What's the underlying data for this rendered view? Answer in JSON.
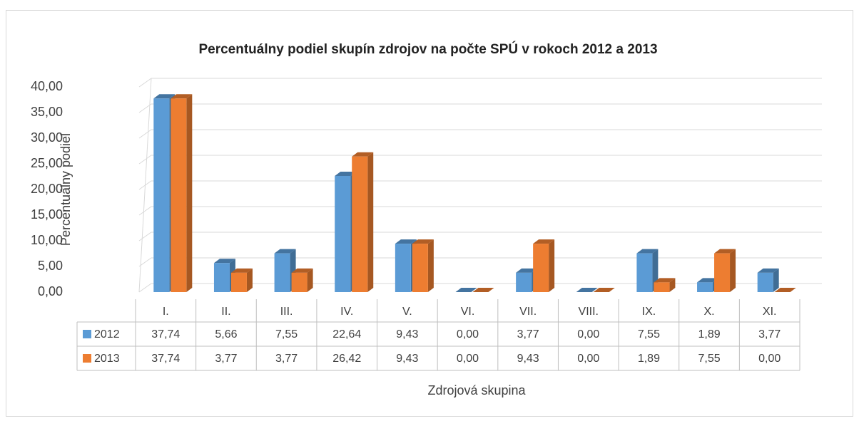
{
  "chart_data": {
    "type": "bar",
    "title": "Percentuálny podiel skupín zdrojov na počte SPÚ v rokoch 2012 a 2013",
    "y_label": "Percentuálny podiel",
    "x_label": "Zdrojová skupina",
    "categories": [
      "I.",
      "II.",
      "III.",
      "IV.",
      "V.",
      "VI.",
      "VII.",
      "VIII.",
      "IX.",
      "X.",
      "XI."
    ],
    "series": [
      {
        "name": "2012",
        "color": "#5b9bd5",
        "values": [
          37.74,
          5.66,
          7.55,
          22.64,
          9.43,
          0,
          3.77,
          0,
          7.55,
          1.89,
          3.77
        ],
        "value_labels": [
          "37,74",
          "5,66",
          "7,55",
          "22,64",
          "9,43",
          "0,00",
          "3,77",
          "0,00",
          "7,55",
          "1,89",
          "3,77"
        ]
      },
      {
        "name": "2013",
        "color": "#ed7d31",
        "values": [
          37.74,
          3.77,
          3.77,
          26.42,
          9.43,
          0,
          9.43,
          0,
          1.89,
          7.55,
          0
        ],
        "value_labels": [
          "37,74",
          "3,77",
          "3,77",
          "26,42",
          "9,43",
          "0,00",
          "9,43",
          "0,00",
          "1,89",
          "7,55",
          "0,00"
        ]
      }
    ],
    "ylim": [
      0,
      40
    ],
    "yticks": [
      {
        "value": 0,
        "label": "0,00"
      },
      {
        "value": 5,
        "label": "5,00"
      },
      {
        "value": 10,
        "label": "10,00"
      },
      {
        "value": 15,
        "label": "15,00"
      },
      {
        "value": 20,
        "label": "20,00"
      },
      {
        "value": 25,
        "label": "25,00"
      },
      {
        "value": 30,
        "label": "30,00"
      },
      {
        "value": 35,
        "label": "35,00"
      },
      {
        "value": 40,
        "label": "40,00"
      }
    ],
    "grid": true
  }
}
